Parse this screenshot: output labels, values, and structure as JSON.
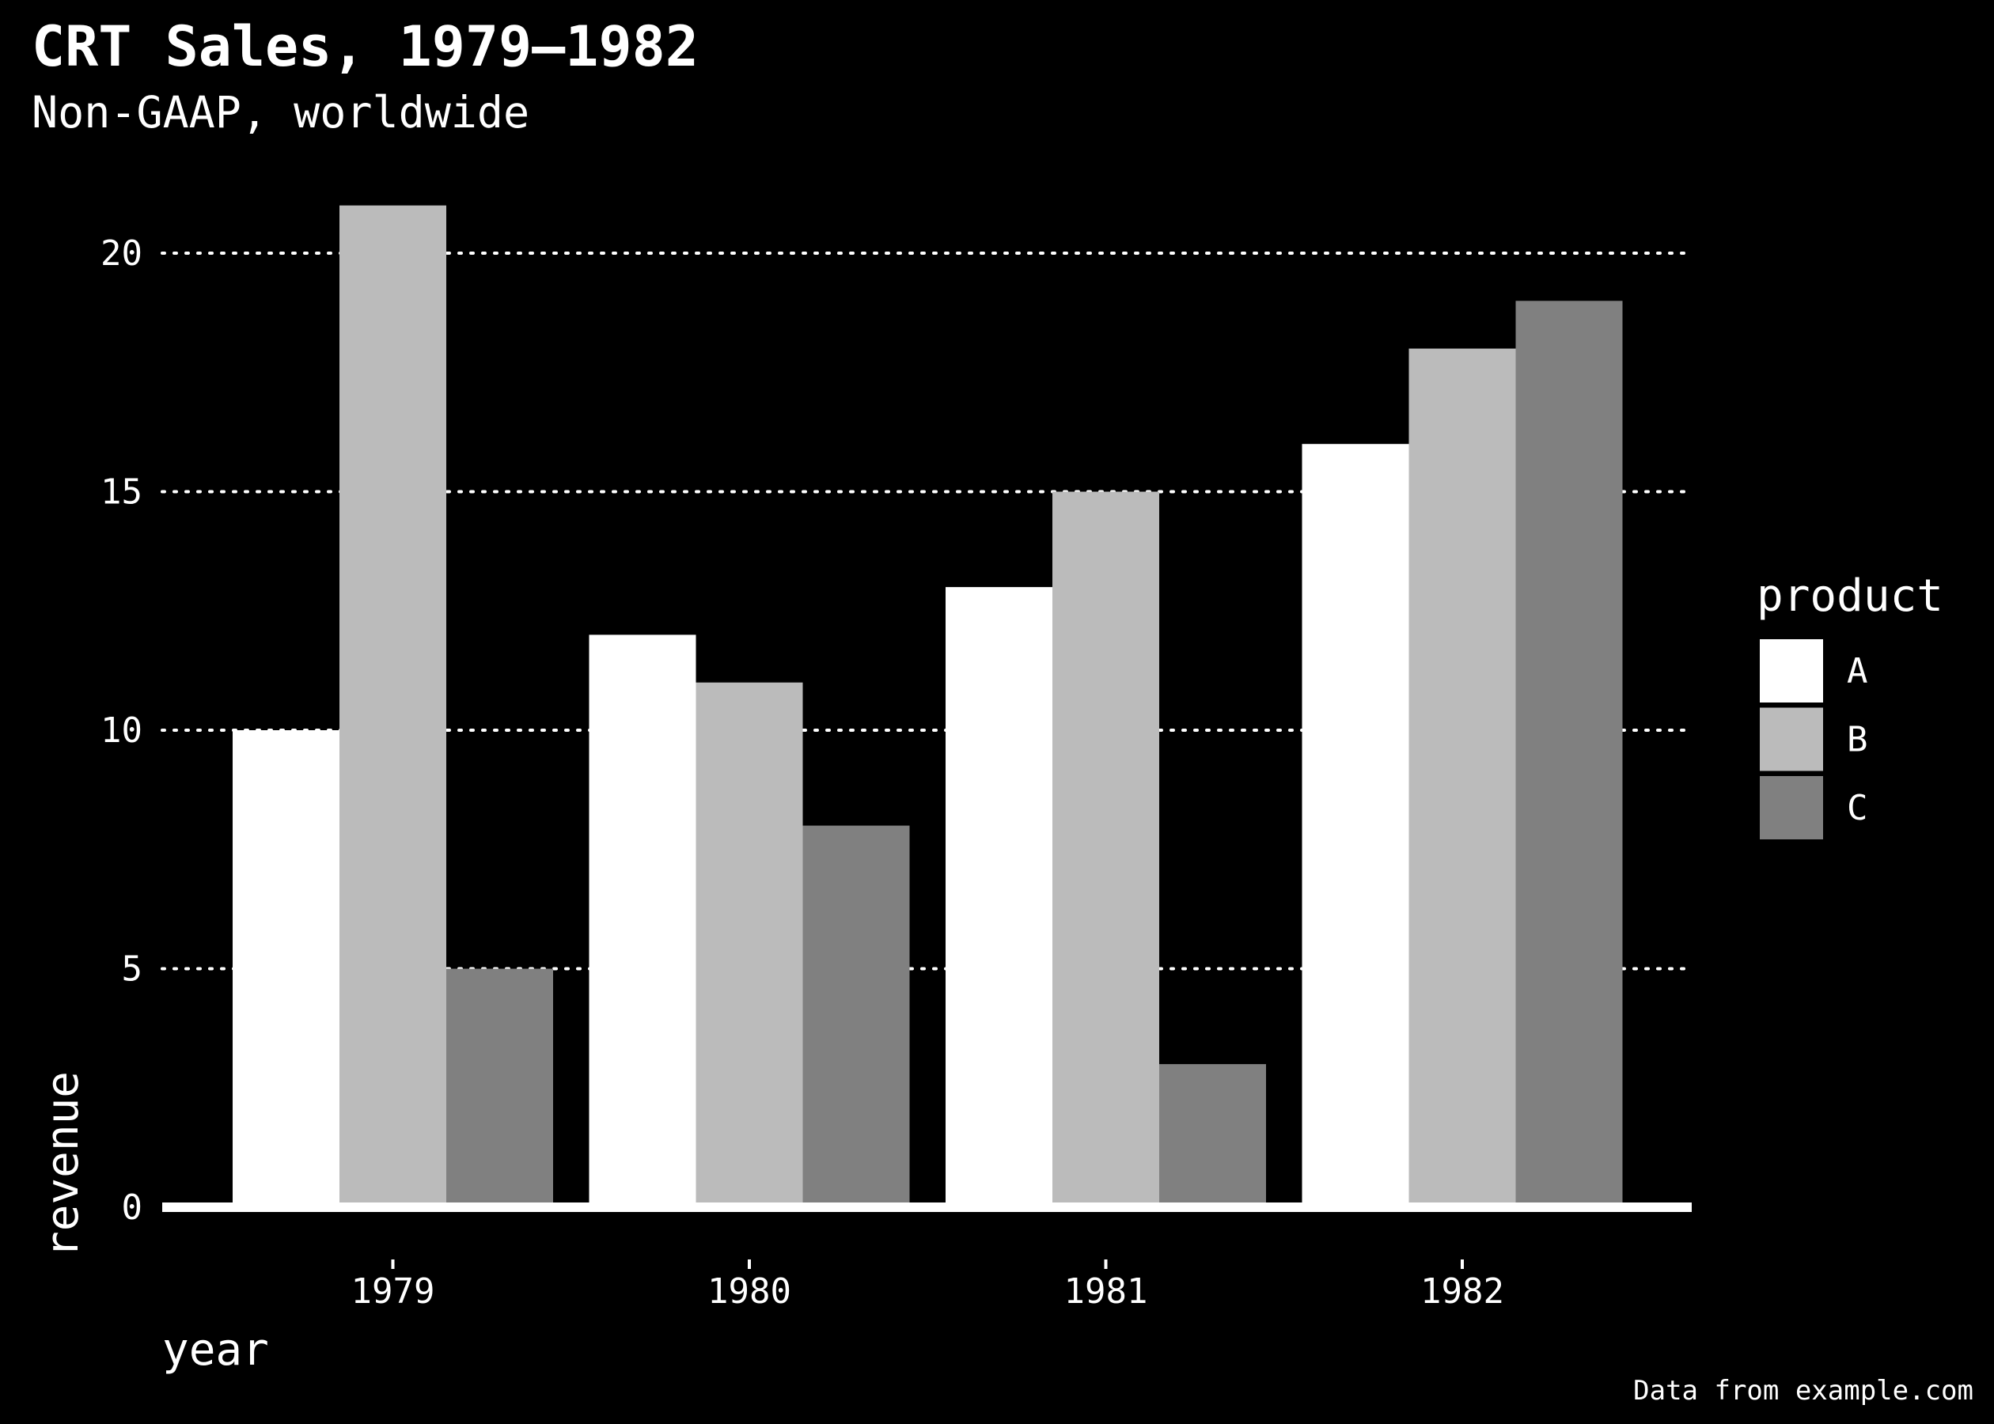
{
  "chart_data": {
    "type": "bar",
    "title": "CRT Sales, 1979–1982",
    "subtitle": "Non-GAAP, worldwide",
    "caption": "Data from example.com",
    "xlabel": "year",
    "ylabel": "revenue",
    "categories": [
      "1979",
      "1980",
      "1981",
      "1982"
    ],
    "series": [
      {
        "name": "A",
        "color": "#ffffff",
        "values": [
          10,
          12,
          13,
          16
        ]
      },
      {
        "name": "B",
        "color": "#bbbbbb",
        "values": [
          21,
          11,
          15,
          18
        ]
      },
      {
        "name": "C",
        "color": "#808080",
        "values": [
          5,
          8,
          3,
          19
        ]
      }
    ],
    "ylim": [
      0,
      22
    ],
    "yticks": [
      0,
      5,
      10,
      15,
      20
    ],
    "grid": "horizontal dotted",
    "legend_title": "product",
    "legend_position": "right",
    "background": "#000000",
    "foreground": "#ffffff"
  }
}
